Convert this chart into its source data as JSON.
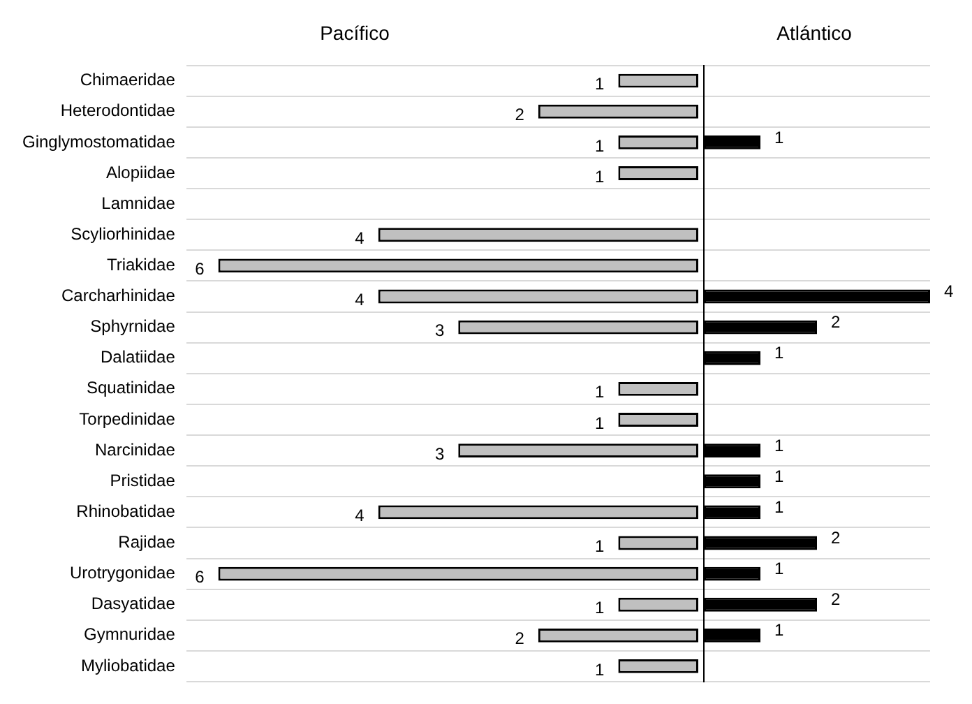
{
  "chart_data": [
    {
      "type": "bar",
      "orientation": "horizontal",
      "title": "Pacífico",
      "categories": [
        "Chimaeridae",
        "Heterodontidae",
        "Ginglymostomatidae",
        "Alopiidae",
        "Lamnidae",
        "Scyliorhinidae",
        "Triakidae",
        "Carcharhinidae",
        "Sphyrnidae",
        "Dalatiidae",
        "Squatinidae",
        "Torpedinidae",
        "Narcinidae",
        "Pristidae",
        "Rhinobatidae",
        "Rajidae",
        "Urotrygonidae",
        "Dasyatidae",
        "Gymnuridae",
        "Myliobatidae"
      ],
      "series": [
        {
          "color": "#c0c0c0",
          "values": [
            1,
            2,
            1,
            1,
            null,
            4,
            6,
            4,
            3,
            null,
            1,
            1,
            3,
            null,
            4,
            1,
            6,
            1,
            2,
            1
          ]
        }
      ],
      "xlim": [
        6.4,
        0
      ],
      "data_labels": true,
      "grid": "y",
      "legend": false,
      "tick_labels": "y"
    },
    {
      "type": "bar",
      "orientation": "horizontal",
      "title": "Atlántico",
      "categories": [
        null,
        null,
        null,
        null,
        null,
        null,
        null,
        null,
        null,
        null,
        null,
        null,
        null,
        null,
        null,
        null,
        null,
        null,
        null,
        null
      ],
      "series": [
        {
          "color": "#000000",
          "values": [
            null,
            null,
            1,
            null,
            null,
            null,
            null,
            4,
            2,
            1,
            null,
            null,
            1,
            1,
            1,
            2,
            1,
            2,
            1,
            null
          ]
        }
      ],
      "xlim": [
        0,
        4
      ],
      "data_labels": true,
      "grid": "y",
      "legend": false,
      "tick_labels": false
    }
  ]
}
